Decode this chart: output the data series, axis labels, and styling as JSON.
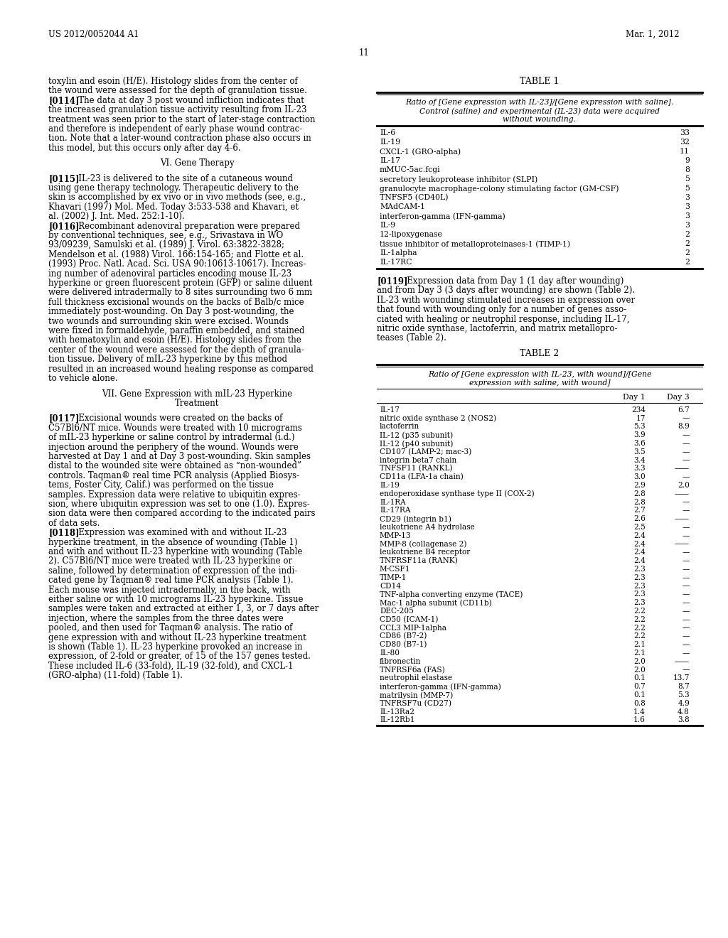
{
  "page_header_left": "US 2012/0052044 A1",
  "page_header_right": "Mar. 1, 2012",
  "page_number": "11",
  "left_col_paragraphs": [
    {
      "type": "body",
      "lines": [
        "toxylin and esoin (H/E). Histology slides from the center of",
        "the wound were assessed for the depth of granulation tissue."
      ]
    },
    {
      "type": "para_bold",
      "tag": "[0114]",
      "lines": [
        "   The data at day 3 post wound infliction indicates that",
        "the increased granulation tissue activity resulting from IL-23",
        "treatment was seen prior to the start of later-stage contraction",
        "and therefore is independent of early phase wound contrac-",
        "tion. Note that a later-wound contraction phase also occurs in",
        "this model, but this occurs only after day 4-6."
      ]
    },
    {
      "type": "section",
      "text": "VI. Gene Therapy"
    },
    {
      "type": "para_bold",
      "tag": "[0115]",
      "lines": [
        "   IL-23 is delivered to the site of a cutaneous wound",
        "using gene therapy technology. Therapeutic delivery to the",
        "skin is accomplished by ex vivo or in vivo methods (see, e.g.,",
        "Khavari (1997) Mol. Med. Today 3:533-538 and Khavari, et",
        "al. (2002) J. Int. Med. 252:1-10)."
      ]
    },
    {
      "type": "para_bold",
      "tag": "[0116]",
      "lines": [
        "   Recombinant adenoviral preparation were prepared",
        "by conventional techniques, see, e.g., Srivastava in WO",
        "93/09239, Samulski et al. (1989) J. Virol. 63:3822-3828;",
        "Mendelson et al. (1988) Virol. 166:154-165; and Flotte et al.",
        "(1993) Proc. Natl. Acad. Sci. USA 90:10613-10617). Increas-",
        "ing number of adenoviral particles encoding mouse IL-23",
        "hyperkine or green fluorescent protein (GFP) or saline diluent",
        "were delivered intradermally to 8 sites surrounding two 6 mm",
        "full thickness excisional wounds on the backs of Balb/c mice",
        "immediately post-wounding. On Day 3 post-wounding, the",
        "two wounds and surrounding skin were excised. Wounds",
        "were fixed in formaldehyde, paraffin embedded, and stained",
        "with hematoxylin and esoin (H/E). Histology slides from the",
        "center of the wound were assessed for the depth of granula-",
        "tion tissue. Delivery of mIL-23 hyperkine by this method",
        "resulted in an increased wound healing response as compared",
        "to vehicle alone."
      ]
    },
    {
      "type": "section",
      "text": "VII. Gene Expression with mIL-23 Hyperkine\nTreatment"
    },
    {
      "type": "para_bold",
      "tag": "[0117]",
      "lines": [
        "   Excisional wounds were created on the backs of",
        "C57Bl6/NT mice. Wounds were treated with 10 micrograms",
        "of mIL-23 hyperkine or saline control by intradermal (i.d.)",
        "injection around the periphery of the wound. Wounds were",
        "harvested at Day 1 and at Day 3 post-wounding. Skin samples",
        "distal to the wounded site were obtained as “non-wounded”",
        "controls. Taqman® real time PCR analysis (Applied Biosys-",
        "tems, Foster City, Calif.) was performed on the tissue",
        "samples. Expression data were relative to ubiquitin expres-",
        "sion, where ubiquitin expression was set to one (1.0). Expres-",
        "sion data were then compared according to the indicated pairs",
        "of data sets."
      ]
    },
    {
      "type": "para_bold",
      "tag": "[0118]",
      "lines": [
        "   Expression was examined with and without IL-23",
        "hyperkine treatment, in the absence of wounding (Table 1)",
        "and with and without IL-23 hyperkine with wounding (Table",
        "2). C57Bl6/NT mice were treated with IL-23 hyperkine or",
        "saline, followed by determination of expression of the indi-",
        "cated gene by Taqman® real time PCR analysis (Table 1).",
        "Each mouse was injected intradermally, in the back, with",
        "either saline or with 10 micrograms IL-23 hyperkine. Tissue",
        "samples were taken and extracted at either 1, 3, or 7 days after",
        "injection, where the samples from the three dates were",
        "pooled, and then used for Taqman® analysis. The ratio of",
        "gene expression with and without IL-23 hyperkine treatment",
        "is shown (Table 1). IL-23 hyperkine provoked an increase in",
        "expression, of 2-fold or greater, of 15 of the 157 genes tested.",
        "These included IL-6 (33-fold), IL-19 (32-fold), and CXCL-1",
        "(GRO-alpha) (11-fold) (Table 1)."
      ]
    }
  ],
  "right_col_119_tag": "[0119]",
  "right_col_119_lines": [
    "   Expression data from Day 1 (1 day after wounding)",
    "and from Day 3 (3 days after wounding) are shown (Table 2).",
    "IL-23 with wounding stimulated increases in expression over",
    "that found with wounding only for a number of genes asso-",
    "ciated with healing or neutrophil response, including IL-17,",
    "nitric oxide synthase, lactoferrin, and matrix metallopro-",
    "teases (Table 2)."
  ],
  "table1_title": "TABLE 1",
  "table1_caption_lines": [
    "Ratio of [Gene expression with IL-23]/[Gene expression with saline].",
    "Control (saline) and experimental (IL-23) data were acquired",
    "without wounding."
  ],
  "table1_rows": [
    [
      "IL-6",
      "33"
    ],
    [
      "IL-19",
      "32"
    ],
    [
      "CXCL-1 (GRO-alpha)",
      "11"
    ],
    [
      "IL-17",
      "9"
    ],
    [
      "mMUC-5ac.fcgi",
      "8"
    ],
    [
      "secretory leukoprotease inhibitor (SLPI)",
      "5"
    ],
    [
      "granulocyte macrophage-colony stimulating factor (GM-CSF)",
      "5"
    ],
    [
      "TNFSF5 (CD40L)",
      "3"
    ],
    [
      "MAdCAM-1",
      "3"
    ],
    [
      "interferon-gamma (IFN-gamma)",
      "3"
    ],
    [
      "IL-9",
      "3"
    ],
    [
      "12-lipoxygenase",
      "2"
    ],
    [
      "tissue inhibitor of metalloproteinases-1 (TIMP-1)",
      "2"
    ],
    [
      "IL-1alpha",
      "2"
    ],
    [
      "IL-17RC",
      "2"
    ]
  ],
  "table2_title": "TABLE 2",
  "table2_caption_lines": [
    "Ratio of [Gene expression with IL-23, with wound]/[Gene",
    "expression with saline, with wound]"
  ],
  "table2_rows": [
    [
      "IL-17",
      "234",
      "6.7"
    ],
    [
      "nitric oxide synthase 2 (NOS2)",
      "17",
      "—"
    ],
    [
      "lactoferrin",
      "5.3",
      "8.9"
    ],
    [
      "IL-12 (p35 subunit)",
      "3.9",
      "—"
    ],
    [
      "IL-12 (p40 subunit)",
      "3.6",
      "—"
    ],
    [
      "CD107 (LAMP-2; mac-3)",
      "3.5",
      "—"
    ],
    [
      "integrin beta7 chain",
      "3.4",
      "—"
    ],
    [
      "TNFSF11 (RANKL)",
      "3.3",
      "——"
    ],
    [
      "CD11a (LFA-1a chain)",
      "3.0",
      "—"
    ],
    [
      "IL-19",
      "2.9",
      "2.0"
    ],
    [
      "endoperoxidase synthase type II (COX-2)",
      "2.8",
      "——"
    ],
    [
      "IL-1RA",
      "2.8",
      "—"
    ],
    [
      "IL-17RA",
      "2.7",
      "—"
    ],
    [
      "CD29 (integrin b1)",
      "2.6",
      "——"
    ],
    [
      "leukotriene A4 hydrolase",
      "2.5",
      "—"
    ],
    [
      "MMP-13",
      "2.4",
      "—"
    ],
    [
      "MMP-8 (collagenase 2)",
      "2.4",
      "——"
    ],
    [
      "leukotriene B4 receptor",
      "2.4",
      "—"
    ],
    [
      "TNFRSF11a (RANK)",
      "2.4",
      "—"
    ],
    [
      "M-CSF1",
      "2.3",
      "—"
    ],
    [
      "TIMP-1",
      "2.3",
      "—"
    ],
    [
      "CD14",
      "2.3",
      "—"
    ],
    [
      "TNF-alpha converting enzyme (TACE)",
      "2.3",
      "—"
    ],
    [
      "Mac-1 alpha subunit (CD11b)",
      "2.3",
      "—"
    ],
    [
      "DEC-205",
      "2.2",
      "—"
    ],
    [
      "CD50 (ICAM-1)",
      "2.2",
      "—"
    ],
    [
      "CCL3 MIP-1alpha",
      "2.2",
      "—"
    ],
    [
      "CD86 (B7-2)",
      "2.2",
      "—"
    ],
    [
      "CD80 (B7-1)",
      "2.1",
      "—"
    ],
    [
      "IL-80",
      "2.1",
      "—"
    ],
    [
      "fibronectin",
      "2.0",
      "——"
    ],
    [
      "TNFRSF6a (FAS)",
      "2.0",
      "—"
    ],
    [
      "neutrophil elastase",
      "0.1",
      "13.7"
    ],
    [
      "interferon-gamma (IFN-gamma)",
      "0.7",
      "8.7"
    ],
    [
      "matrilysin (MMP-7)",
      "0.1",
      "5.3"
    ],
    [
      "TNFRSF7u (CD27)",
      "0.8",
      "4.9"
    ],
    [
      "IL-13Ra2",
      "1.4",
      "4.8"
    ],
    [
      "IL-12Rb1",
      "1.6",
      "3.8"
    ]
  ]
}
